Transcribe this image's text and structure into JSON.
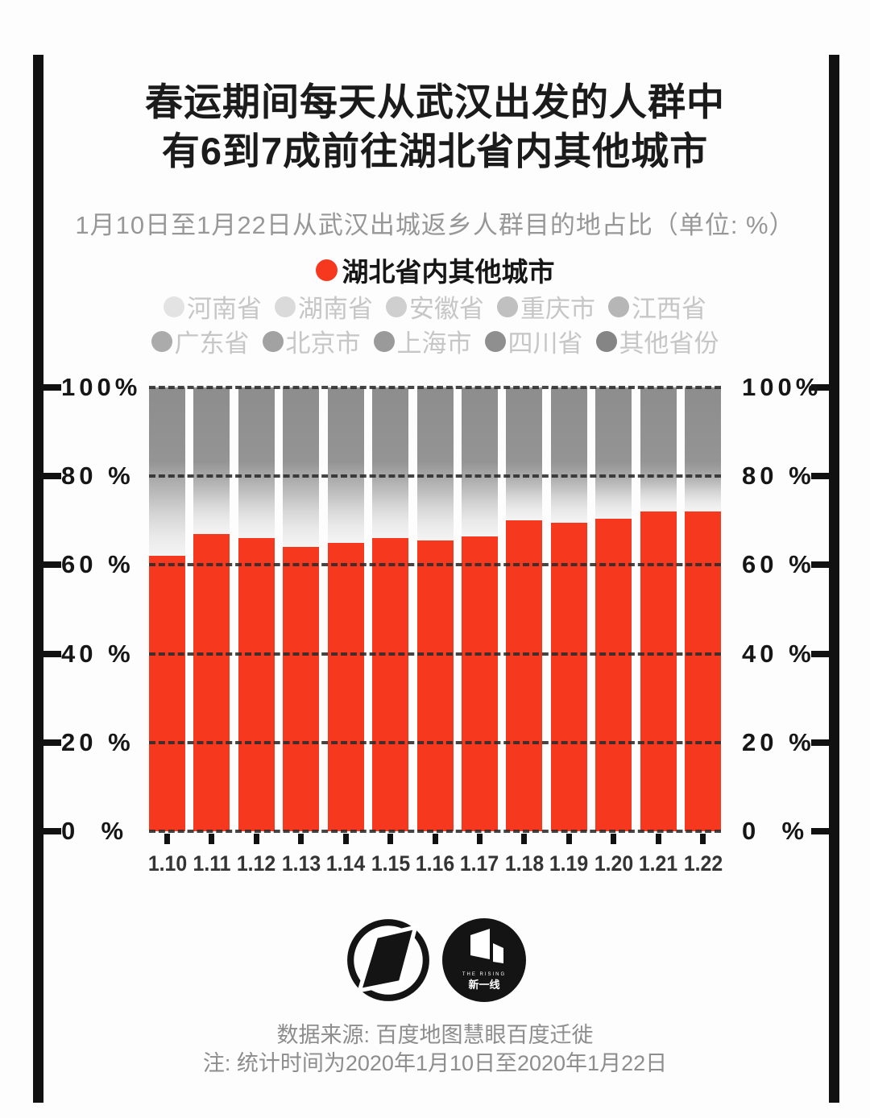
{
  "title": {
    "line1": "春运期间每天从武汉出发的人群中",
    "line2": "有6到7成前往湖北省内其他城市"
  },
  "subtitle": "1月10日至1月22日从武汉出城返乡人群目的地占比（单位: %）",
  "legend": {
    "primary": {
      "label": "湖北省内其他城市",
      "color": "#f6381f"
    },
    "row1": [
      {
        "label": "河南省",
        "dot": "#e3e3e3"
      },
      {
        "label": "湖南省",
        "dot": "#dadada"
      },
      {
        "label": "安徽省",
        "dot": "#cfcfcf"
      },
      {
        "label": "重庆市",
        "dot": "#c0c0c0"
      },
      {
        "label": "江西省",
        "dot": "#b6b6b6"
      }
    ],
    "row2": [
      {
        "label": "广东省",
        "dot": "#ababab"
      },
      {
        "label": "北京市",
        "dot": "#a2a2a2"
      },
      {
        "label": "上海市",
        "dot": "#9a9a9a"
      },
      {
        "label": "四川省",
        "dot": "#8f8f8f"
      },
      {
        "label": "其他省份",
        "dot": "#858585"
      }
    ],
    "text_color": "#c6c6c6"
  },
  "chart_data": {
    "type": "bar",
    "stacked": true,
    "title": "春运期间每天从武汉出发的人群中有6到7成前往湖北省内其他城市",
    "subtitle": "1月10日至1月22日从武汉出城返乡人群目的地占比（单位: %）",
    "unit": "%",
    "categories": [
      "1.10",
      "1.11",
      "1.12",
      "1.13",
      "1.14",
      "1.15",
      "1.16",
      "1.17",
      "1.18",
      "1.19",
      "1.20",
      "1.21",
      "1.22"
    ],
    "series": [
      {
        "name": "湖北省内其他城市",
        "color": "#f6381f",
        "values": [
          62,
          67,
          66,
          64,
          65,
          66,
          65.5,
          66.5,
          70,
          69.5,
          70.5,
          72,
          72
        ],
        "estimated_from_pixels": true
      },
      {
        "name": "其他目的地合计（河南省、湖南省、安徽省、重庆市、江西省、广东省、北京市、上海市、四川省、其他省份；各层自下而上由浅灰渐深灰，单层数值图中不可辨）",
        "color": "#949494",
        "values": [
          38,
          33,
          34,
          36,
          35,
          34,
          34.5,
          33.5,
          30,
          30.5,
          29.5,
          28,
          28
        ]
      }
    ],
    "ylim": [
      0,
      100
    ],
    "yticks": [
      100,
      80,
      60,
      40,
      20,
      0
    ],
    "grid": "horizontal-dashed",
    "legend_position": "top"
  },
  "y_axis": [
    {
      "value": 100,
      "label": "100%"
    },
    {
      "value": 80,
      "label": "80 %"
    },
    {
      "value": 60,
      "label": "60 %"
    },
    {
      "value": 40,
      "label": "40 %"
    },
    {
      "value": 20,
      "label": "20 %"
    },
    {
      "value": 0,
      "label": "0  %"
    }
  ],
  "footer": {
    "source": "数据来源: 百度地图慧眼百度迁徙",
    "note": "注: 统计时间为2020年1月10日至2020年1月22日",
    "logo_rising_text_small": "THE RISING",
    "logo_rising_text": "新一线"
  }
}
